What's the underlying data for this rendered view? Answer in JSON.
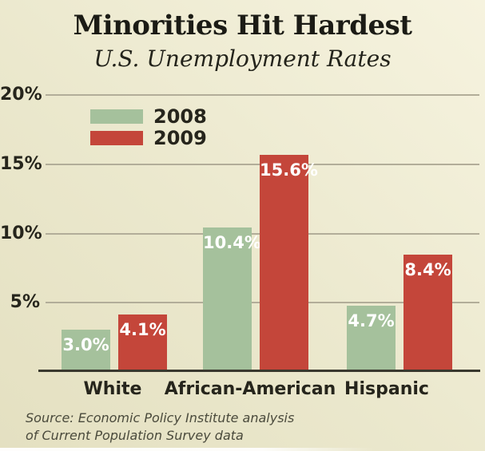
{
  "title": "Minorities Hit Hardest",
  "subtitle": "U.S. Unemployment Rates",
  "source": {
    "line1": "Source: Economic Policy Institute analysis",
    "line2": "of Current Population Survey data"
  },
  "colors": {
    "background": "#ebe8cd",
    "series_2008_green": "#a5c19c",
    "series_2009_red": "#c4463a",
    "gridline": "#b2ad99",
    "axis_line": "#39382e",
    "text_dark": "#26251c",
    "value_label_text": "#ffffff"
  },
  "chart_data": {
    "type": "bar",
    "title": "Minorities Hit Hardest",
    "subtitle": "U.S. Unemployment Rates",
    "categories": [
      "White",
      "African-American",
      "Hispanic"
    ],
    "series": [
      {
        "name": "2008",
        "color": "#a5c19c",
        "values": [
          3.0,
          10.4,
          4.7
        ],
        "value_labels": [
          "3.0%",
          "10.4%",
          "4.7%"
        ]
      },
      {
        "name": "2009",
        "color": "#c4463a",
        "values": [
          4.1,
          15.6,
          8.4
        ],
        "value_labels": [
          "4.1%",
          "15.6%",
          "8.4%"
        ]
      }
    ],
    "xlabel": "",
    "ylabel": "",
    "ylim": [
      0,
      20
    ],
    "yticks": [
      {
        "value": 5,
        "label": "5%"
      },
      {
        "value": 10,
        "label": "10%"
      },
      {
        "value": 15,
        "label": "15%"
      },
      {
        "value": 20,
        "label": "20%"
      }
    ],
    "grid": true,
    "legend_position": "top-left",
    "source": "Source: Economic Policy Institute analysis of Current Population Survey data"
  }
}
